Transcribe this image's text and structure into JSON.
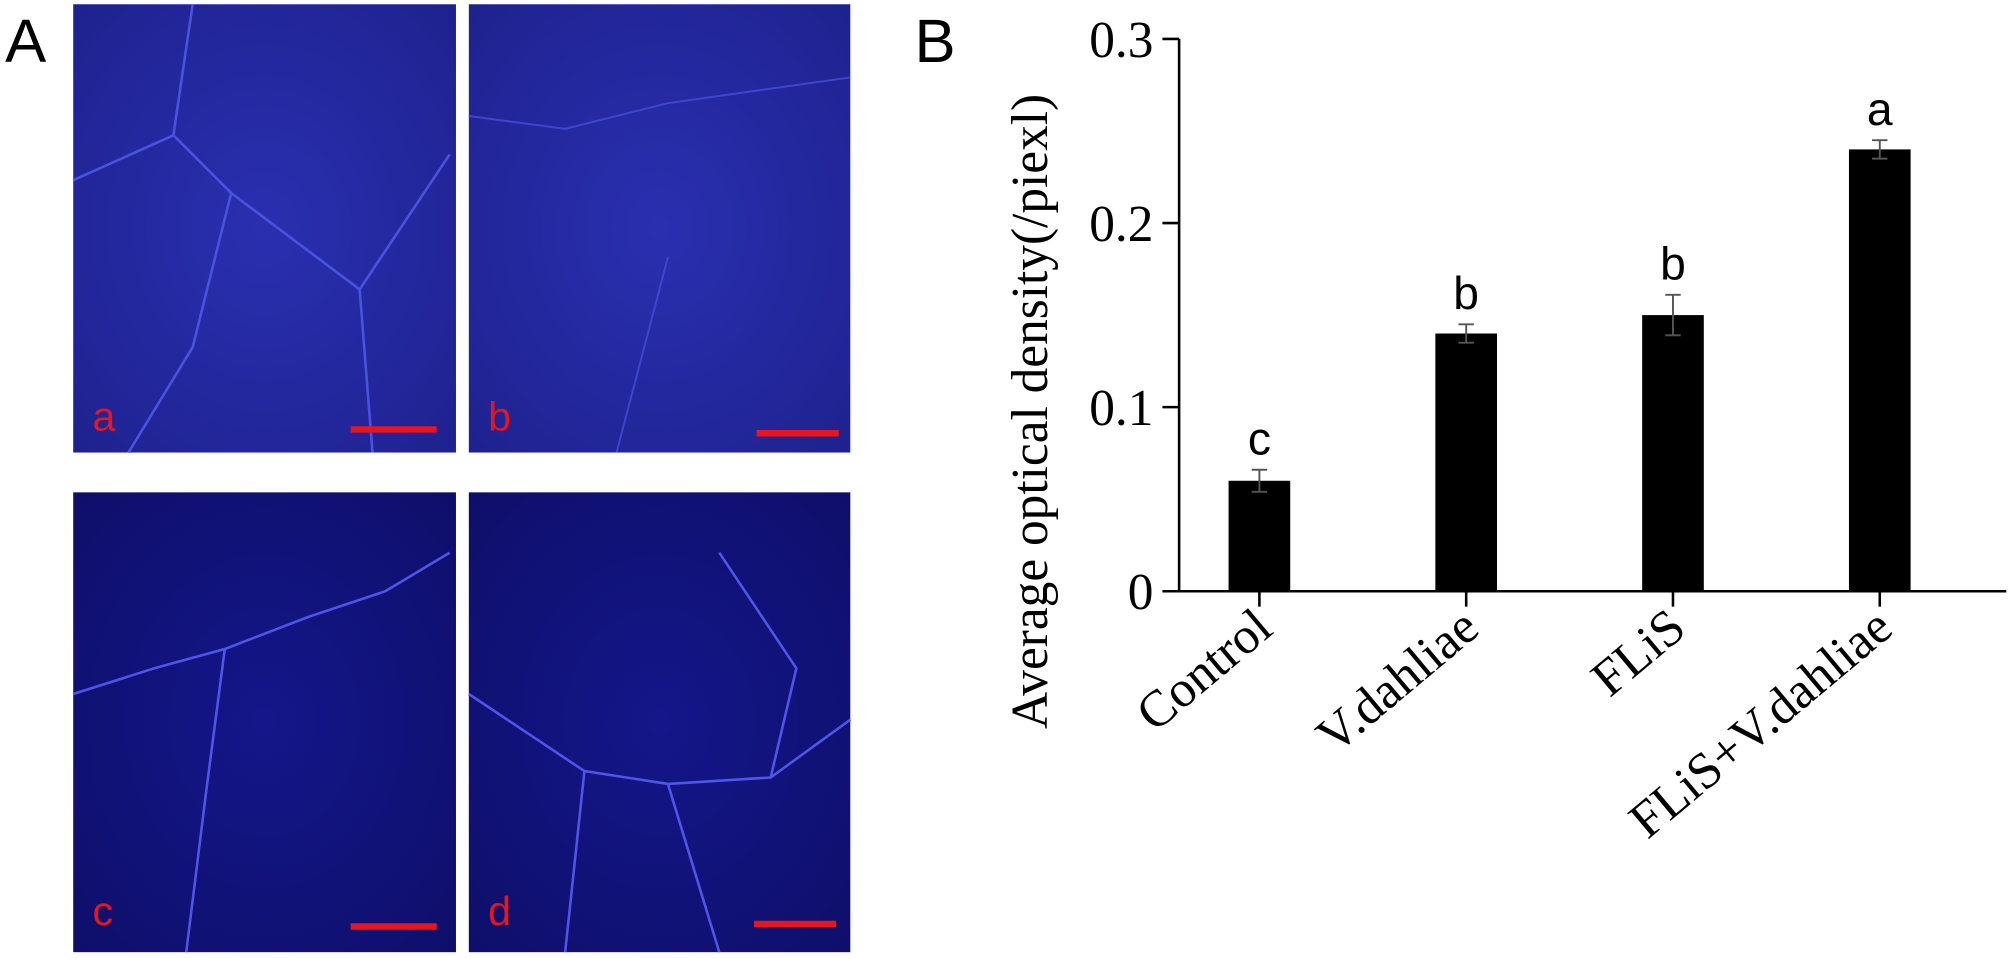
{
  "panel_labels": [
    "A",
    "B"
  ],
  "micrographs": {
    "labels": [
      "a",
      "b",
      "c",
      "d"
    ]
  },
  "chart_data": {
    "type": "bar",
    "ylabel": "Average optical density(/piexl)",
    "categories": [
      "Control",
      "V.dahliae",
      "FLiS",
      "FLiS+V.dahliae"
    ],
    "values": [
      0.06,
      0.14,
      0.15,
      0.24
    ],
    "errors": [
      0.006,
      0.005,
      0.011,
      0.005
    ],
    "significance": [
      "c",
      "b",
      "b",
      "a"
    ],
    "color": "#000000",
    "ylim": [
      0,
      0.3
    ],
    "yticks": [
      0,
      0.1,
      0.2,
      0.3
    ]
  }
}
